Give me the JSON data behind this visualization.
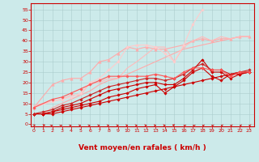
{
  "bg_color": "#cceaea",
  "grid_color": "#aacccc",
  "xlabel": "Vent moyen/en rafales ( km/h )",
  "xlabel_color": "#cc0000",
  "xlabel_fontsize": 6.5,
  "xticks": [
    0,
    1,
    2,
    3,
    4,
    5,
    6,
    7,
    8,
    9,
    10,
    11,
    12,
    13,
    14,
    15,
    16,
    17,
    18,
    19,
    20,
    21,
    22,
    23
  ],
  "yticks": [
    0,
    5,
    10,
    15,
    20,
    25,
    30,
    35,
    40,
    45,
    50,
    55
  ],
  "ylim": [
    -1,
    58
  ],
  "xlim": [
    -0.3,
    23.5
  ],
  "arrow_angles": [
    210,
    220,
    225,
    225,
    230,
    235,
    235,
    240,
    240,
    245,
    245,
    245,
    250,
    250,
    250,
    40,
    45,
    45,
    50,
    50,
    55,
    55,
    55,
    60
  ],
  "series": [
    {
      "x": [
        0,
        1,
        2,
        3,
        4,
        5,
        6,
        7,
        8,
        9,
        10,
        11,
        12,
        13,
        14,
        15,
        16,
        17,
        18,
        19,
        20,
        21,
        22,
        23
      ],
      "y": [
        5,
        5,
        5,
        6,
        7,
        8,
        9,
        10,
        11,
        12,
        13,
        14,
        15,
        16,
        17,
        18,
        19,
        20,
        21,
        22,
        23,
        24,
        25,
        25
      ],
      "color": "#cc0000",
      "lw": 0.8,
      "marker": "D",
      "ms": 1.8,
      "zorder": 3
    },
    {
      "x": [
        0,
        1,
        2,
        3,
        4,
        5,
        6,
        7,
        8,
        9,
        10,
        11,
        12,
        13,
        14,
        15,
        16,
        17,
        18,
        19,
        20,
        21,
        22,
        23
      ],
      "y": [
        5,
        5,
        6,
        7,
        8,
        9,
        10,
        11,
        13,
        14,
        15,
        17,
        18,
        19,
        15,
        18,
        21,
        25,
        27,
        23,
        21,
        24,
        24,
        25
      ],
      "color": "#cc0000",
      "lw": 0.8,
      "marker": "D",
      "ms": 1.8,
      "zorder": 3
    },
    {
      "x": [
        0,
        1,
        2,
        3,
        4,
        5,
        6,
        7,
        8,
        9,
        10,
        11,
        12,
        13,
        14,
        15,
        16,
        17,
        18,
        19,
        20,
        21,
        22,
        23
      ],
      "y": [
        5,
        5,
        6,
        8,
        9,
        10,
        12,
        14,
        16,
        17,
        18,
        19,
        20,
        20,
        19,
        19,
        22,
        26,
        31,
        25,
        25,
        22,
        24,
        25
      ],
      "color": "#cc0000",
      "lw": 0.8,
      "marker": "D",
      "ms": 1.8,
      "zorder": 3
    },
    {
      "x": [
        0,
        1,
        2,
        3,
        4,
        5,
        6,
        7,
        8,
        9,
        10,
        11,
        12,
        13,
        14,
        15,
        16,
        17,
        18,
        19,
        20,
        21,
        22,
        23
      ],
      "y": [
        5,
        6,
        7,
        9,
        10,
        12,
        14,
        16,
        18,
        19,
        20,
        21,
        22,
        22,
        21,
        22,
        24,
        27,
        29,
        26,
        26,
        24,
        25,
        26
      ],
      "color": "#cc2222",
      "lw": 0.8,
      "marker": "D",
      "ms": 1.8,
      "zorder": 3
    },
    {
      "x": [
        0,
        2,
        3,
        4,
        5,
        6,
        7,
        8,
        9,
        10,
        11,
        12,
        13,
        14,
        15,
        16,
        17,
        18,
        19,
        20,
        21,
        22,
        23
      ],
      "y": [
        8,
        12,
        13,
        15,
        17,
        19,
        21,
        23,
        23,
        23,
        23,
        23,
        24,
        23,
        22,
        25,
        27,
        27,
        26,
        26,
        23,
        25,
        25
      ],
      "color": "#ff5555",
      "lw": 0.8,
      "marker": "D",
      "ms": 1.8,
      "zorder": 3
    },
    {
      "x": [
        0,
        1,
        2,
        3,
        4,
        5,
        6,
        7,
        8,
        9,
        10,
        11,
        12,
        13,
        14,
        15,
        16,
        17,
        18,
        19,
        20,
        21,
        22,
        23
      ],
      "y": [
        5,
        5,
        8,
        10,
        12,
        14,
        16,
        19,
        21,
        22,
        24,
        26,
        28,
        30,
        32,
        34,
        36,
        37,
        38,
        39,
        40,
        41,
        42,
        42
      ],
      "color": "#ffaaaa",
      "lw": 0.8,
      "marker": null,
      "ms": 0,
      "zorder": 2
    },
    {
      "x": [
        0,
        2,
        3,
        4,
        5,
        6,
        7,
        8,
        9,
        10,
        11,
        12,
        13,
        14,
        16,
        17,
        18,
        19,
        20,
        21,
        22,
        23
      ],
      "y": [
        8,
        19,
        21,
        22,
        22,
        25,
        30,
        31,
        34,
        37,
        36,
        37,
        36,
        36,
        38,
        40,
        41,
        40,
        41,
        41,
        42,
        42
      ],
      "color": "#ffaaaa",
      "lw": 0.8,
      "marker": "^",
      "ms": 2.5,
      "zorder": 2
    },
    {
      "x": [
        0,
        2,
        3,
        4,
        5,
        6,
        7,
        8,
        9,
        10,
        11,
        13,
        14,
        15,
        16,
        17,
        18,
        19,
        20,
        21,
        22,
        23
      ],
      "y": [
        9,
        11,
        12,
        14,
        14,
        20,
        20,
        22,
        22,
        27,
        30,
        37,
        37,
        30,
        37,
        40,
        42,
        40,
        42,
        41,
        42,
        42
      ],
      "color": "#ffbbbb",
      "lw": 0.8,
      "marker": null,
      "ms": 0,
      "zorder": 2
    },
    {
      "x": [
        0,
        2,
        3,
        4,
        5,
        6,
        7,
        8,
        9,
        10,
        11,
        12,
        13,
        14,
        15,
        16,
        17,
        18
      ],
      "y": [
        8,
        11,
        12,
        13,
        15,
        20,
        22,
        26,
        30,
        37,
        38,
        38,
        37,
        34,
        30,
        38,
        48,
        55
      ],
      "color": "#ffcccc",
      "lw": 0.8,
      "marker": "D",
      "ms": 1.8,
      "zorder": 2
    }
  ]
}
